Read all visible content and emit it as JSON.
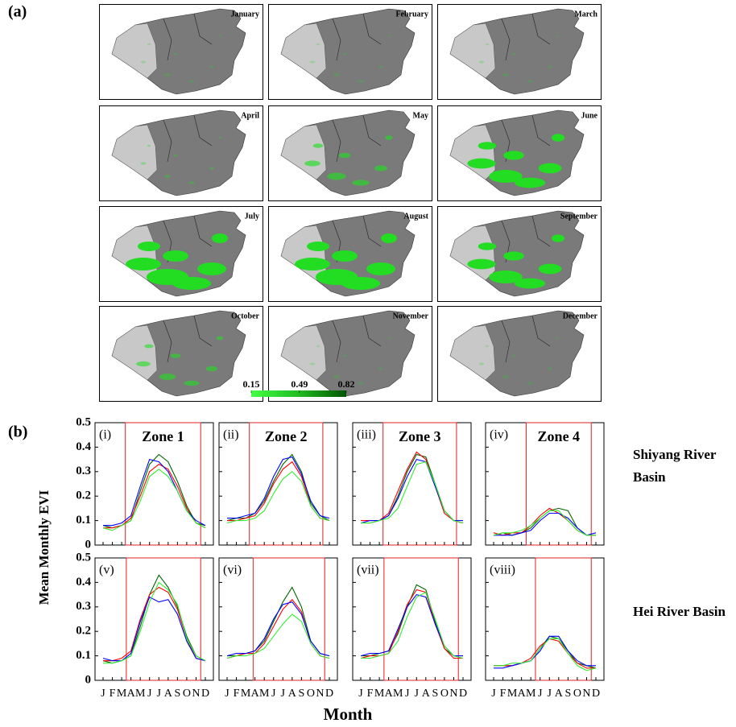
{
  "map_panel": {
    "label": "(a)",
    "months": [
      "January",
      "February",
      "March",
      "April",
      "May",
      "June",
      "July",
      "August",
      "September",
      "October",
      "November",
      "December"
    ],
    "colorbar_ticks": [
      0.15,
      0.49,
      0.82
    ]
  },
  "chart_data": {
    "type": "line",
    "panel_label": "(b)",
    "ylabel": "Mean Monthly EVI",
    "xlabel": "Month",
    "categories": [
      "J",
      "F",
      "M",
      "A",
      "M",
      "J",
      "J",
      "A",
      "S",
      "O",
      "N",
      "D"
    ],
    "ylim": [
      0,
      0.5
    ],
    "yticks": [
      0,
      0.1,
      0.2,
      0.3,
      0.4,
      0.5
    ],
    "row_labels": [
      "Shiyang River Basin",
      "Hei River Basin"
    ],
    "panels": [
      {
        "label": "(i)",
        "title": "Zone 1",
        "series": [
          {
            "color": "#006400",
            "values": [
              0.08,
              0.07,
              0.08,
              0.1,
              0.22,
              0.33,
              0.37,
              0.34,
              0.26,
              0.16,
              0.09,
              0.08
            ]
          },
          {
            "color": "#ff0000",
            "values": [
              0.07,
              0.07,
              0.08,
              0.11,
              0.2,
              0.3,
              0.33,
              0.31,
              0.24,
              0.15,
              0.09,
              0.07
            ]
          },
          {
            "color": "#0000ff",
            "values": [
              0.08,
              0.08,
              0.09,
              0.12,
              0.24,
              0.35,
              0.34,
              0.3,
              0.22,
              0.14,
              0.1,
              0.08
            ]
          },
          {
            "color": "#33ee33",
            "values": [
              0.07,
              0.06,
              0.08,
              0.1,
              0.18,
              0.28,
              0.31,
              0.28,
              0.22,
              0.14,
              0.09,
              0.07
            ]
          }
        ]
      },
      {
        "label": "(ii)",
        "title": "Zone 2",
        "series": [
          {
            "color": "#006400",
            "values": [
              0.1,
              0.11,
              0.11,
              0.13,
              0.18,
              0.26,
              0.33,
              0.37,
              0.3,
              0.17,
              0.12,
              0.1
            ]
          },
          {
            "color": "#ff0000",
            "values": [
              0.1,
              0.1,
              0.11,
              0.12,
              0.17,
              0.25,
              0.31,
              0.34,
              0.28,
              0.16,
              0.11,
              0.1
            ]
          },
          {
            "color": "#0000ff",
            "values": [
              0.11,
              0.11,
              0.12,
              0.13,
              0.19,
              0.28,
              0.35,
              0.36,
              0.29,
              0.18,
              0.12,
              0.11
            ]
          },
          {
            "color": "#33ee33",
            "values": [
              0.09,
              0.1,
              0.1,
              0.11,
              0.14,
              0.21,
              0.27,
              0.3,
              0.26,
              0.16,
              0.11,
              0.1
            ]
          }
        ]
      },
      {
        "label": "(iii)",
        "title": "Zone 3",
        "series": [
          {
            "color": "#006400",
            "values": [
              0.09,
              0.09,
              0.1,
              0.12,
              0.2,
              0.3,
              0.37,
              0.36,
              0.25,
              0.14,
              0.1,
              0.09
            ]
          },
          {
            "color": "#ff0000",
            "values": [
              0.1,
              0.1,
              0.1,
              0.13,
              0.22,
              0.31,
              0.38,
              0.35,
              0.24,
              0.13,
              0.1,
              0.09
            ]
          },
          {
            "color": "#0000ff",
            "values": [
              0.09,
              0.1,
              0.1,
              0.12,
              0.19,
              0.28,
              0.35,
              0.34,
              0.24,
              0.14,
              0.1,
              0.1
            ]
          },
          {
            "color": "#33ee33",
            "values": [
              0.09,
              0.09,
              0.1,
              0.11,
              0.15,
              0.24,
              0.33,
              0.34,
              0.25,
              0.14,
              0.1,
              0.09
            ]
          }
        ]
      },
      {
        "label": "(iv)",
        "title": "Zone 4",
        "series": [
          {
            "color": "#006400",
            "values": [
              0.04,
              0.05,
              0.04,
              0.05,
              0.07,
              0.11,
              0.14,
              0.15,
              0.14,
              0.07,
              0.04,
              0.04
            ]
          },
          {
            "color": "#ff0000",
            "values": [
              0.05,
              0.04,
              0.05,
              0.05,
              0.08,
              0.12,
              0.15,
              0.13,
              0.1,
              0.06,
              0.04,
              0.04
            ]
          },
          {
            "color": "#0000ff",
            "values": [
              0.04,
              0.04,
              0.04,
              0.05,
              0.06,
              0.1,
              0.13,
              0.13,
              0.11,
              0.07,
              0.04,
              0.05
            ]
          },
          {
            "color": "#33ee33",
            "values": [
              0.04,
              0.05,
              0.05,
              0.06,
              0.08,
              0.11,
              0.14,
              0.14,
              0.1,
              0.06,
              0.04,
              0.04
            ]
          }
        ]
      },
      {
        "label": "(v)",
        "series": [
          {
            "color": "#006400",
            "values": [
              0.08,
              0.07,
              0.08,
              0.1,
              0.22,
              0.35,
              0.43,
              0.38,
              0.3,
              0.18,
              0.1,
              0.08
            ]
          },
          {
            "color": "#ff0000",
            "values": [
              0.08,
              0.08,
              0.09,
              0.12,
              0.25,
              0.35,
              0.38,
              0.36,
              0.29,
              0.17,
              0.09,
              0.08
            ]
          },
          {
            "color": "#0000ff",
            "values": [
              0.09,
              0.08,
              0.08,
              0.11,
              0.24,
              0.34,
              0.32,
              0.33,
              0.27,
              0.16,
              0.09,
              0.08
            ]
          },
          {
            "color": "#33ee33",
            "values": [
              0.07,
              0.07,
              0.08,
              0.1,
              0.2,
              0.32,
              0.4,
              0.37,
              0.31,
              0.17,
              0.1,
              0.08
            ]
          }
        ]
      },
      {
        "label": "(vi)",
        "series": [
          {
            "color": "#006400",
            "values": [
              0.1,
              0.1,
              0.11,
              0.12,
              0.16,
              0.24,
              0.32,
              0.38,
              0.3,
              0.16,
              0.11,
              0.1
            ]
          },
          {
            "color": "#ff0000",
            "values": [
              0.09,
              0.1,
              0.11,
              0.11,
              0.15,
              0.22,
              0.29,
              0.33,
              0.28,
              0.15,
              0.1,
              0.09
            ]
          },
          {
            "color": "#0000ff",
            "values": [
              0.1,
              0.11,
              0.11,
              0.12,
              0.17,
              0.25,
              0.31,
              0.32,
              0.27,
              0.16,
              0.11,
              0.1
            ]
          },
          {
            "color": "#33ee33",
            "values": [
              0.09,
              0.1,
              0.1,
              0.11,
              0.13,
              0.18,
              0.23,
              0.27,
              0.24,
              0.15,
              0.1,
              0.09
            ]
          }
        ]
      },
      {
        "label": "(vii)",
        "series": [
          {
            "color": "#006400",
            "values": [
              0.1,
              0.1,
              0.11,
              0.12,
              0.19,
              0.3,
              0.39,
              0.37,
              0.24,
              0.13,
              0.1,
              0.1
            ]
          },
          {
            "color": "#ff0000",
            "values": [
              0.09,
              0.1,
              0.1,
              0.11,
              0.2,
              0.31,
              0.37,
              0.36,
              0.23,
              0.13,
              0.09,
              0.09
            ]
          },
          {
            "color": "#0000ff",
            "values": [
              0.1,
              0.11,
              0.11,
              0.12,
              0.21,
              0.3,
              0.35,
              0.34,
              0.23,
              0.14,
              0.1,
              0.1
            ]
          },
          {
            "color": "#33ee33",
            "values": [
              0.09,
              0.09,
              0.1,
              0.11,
              0.16,
              0.26,
              0.34,
              0.36,
              0.25,
              0.14,
              0.1,
              0.09
            ]
          }
        ]
      },
      {
        "label": "(viii)",
        "series": [
          {
            "color": "#006400",
            "values": [
              0.06,
              0.06,
              0.06,
              0.07,
              0.08,
              0.13,
              0.18,
              0.17,
              0.12,
              0.07,
              0.06,
              0.05
            ]
          },
          {
            "color": "#ff0000",
            "values": [
              0.06,
              0.06,
              0.06,
              0.07,
              0.09,
              0.14,
              0.17,
              0.16,
              0.11,
              0.07,
              0.05,
              0.05
            ]
          },
          {
            "color": "#0000ff",
            "values": [
              0.05,
              0.05,
              0.06,
              0.07,
              0.08,
              0.12,
              0.18,
              0.18,
              0.12,
              0.08,
              0.06,
              0.06
            ]
          },
          {
            "color": "#33ee33",
            "values": [
              0.06,
              0.06,
              0.07,
              0.07,
              0.08,
              0.13,
              0.17,
              0.17,
              0.11,
              0.06,
              0.04,
              0.05
            ]
          }
        ]
      }
    ]
  }
}
